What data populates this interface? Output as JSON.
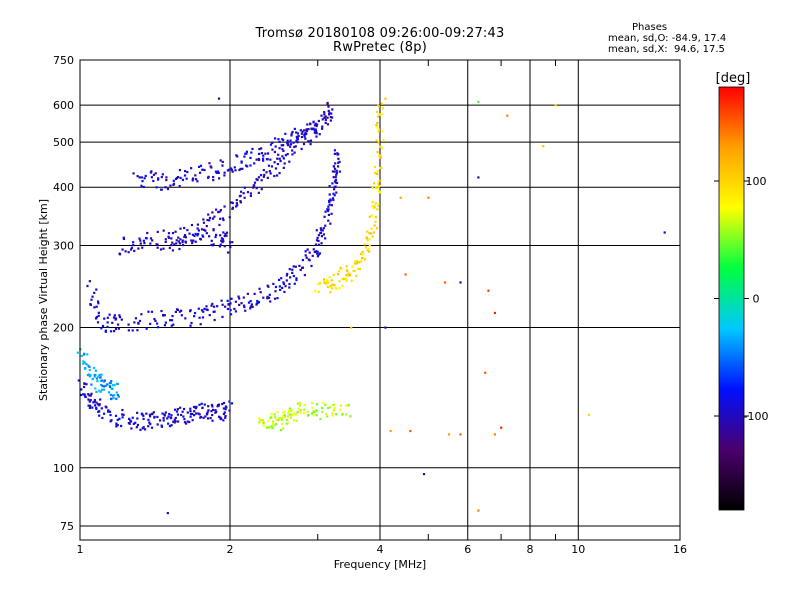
{
  "header": {
    "title_line1": "Tromsø 20180108 09:26:00-09:27:43",
    "title_line2": "RwPretec (8p)"
  },
  "stats": {
    "heading": "Phases",
    "o_line": "mean, sd,O: -84.9, 17.4",
    "x_line": "mean, sd,X:  94.6, 17.5"
  },
  "colorbar": {
    "unit_label": "[deg]",
    "range": [
      -180,
      180
    ],
    "ticks": [
      100,
      0,
      -100
    ],
    "colors": [
      "#000000",
      "#4b006e",
      "#0010ff",
      "#00c8ff",
      "#00ff40",
      "#ffff00",
      "#ffa000",
      "#ff0000"
    ]
  },
  "chart_data": {
    "type": "scatter",
    "xlabel": "Frequency [MHz]",
    "ylabel": "Stationary phase Virtual Height [km]",
    "x_scale": "log",
    "y_scale": "log",
    "xlim": [
      1,
      16
    ],
    "ylim": [
      70,
      750
    ],
    "x_ticks": [
      1,
      2,
      4,
      6,
      8,
      10,
      16
    ],
    "x_minor_ticks": [
      3,
      5,
      7,
      9
    ],
    "y_ticks": [
      75,
      100,
      200,
      300,
      400,
      500,
      600,
      750
    ],
    "grid": true,
    "point_color_encodes": "phase [deg]",
    "traces": [
      {
        "label_hint": "E-region low band",
        "phase": -95,
        "points": [
          [
            1.0,
            150
          ],
          [
            1.05,
            140
          ],
          [
            1.1,
            132
          ],
          [
            1.2,
            128
          ],
          [
            1.3,
            126
          ],
          [
            1.4,
            127
          ],
          [
            1.5,
            128
          ],
          [
            1.6,
            130
          ],
          [
            1.7,
            131
          ],
          [
            1.8,
            132
          ],
          [
            1.9,
            132
          ],
          [
            2.0,
            133
          ]
        ]
      },
      {
        "label_hint": "E-region scatter",
        "phase": -35,
        "points": [
          [
            1.0,
            175
          ],
          [
            1.05,
            160
          ],
          [
            1.1,
            152
          ],
          [
            1.15,
            148
          ],
          [
            1.2,
            146
          ]
        ]
      },
      {
        "label_hint": "Es patch",
        "phase": 65,
        "points": [
          [
            2.3,
            126
          ],
          [
            2.45,
            125
          ],
          [
            2.55,
            127
          ],
          [
            2.7,
            132
          ],
          [
            2.9,
            133
          ],
          [
            3.2,
            132
          ],
          [
            3.5,
            131
          ]
        ]
      },
      {
        "label_hint": "F-region O trace",
        "phase": -95,
        "points": [
          [
            1.05,
            245
          ],
          [
            1.1,
            205
          ],
          [
            1.2,
            205
          ],
          [
            1.4,
            208
          ],
          [
            1.6,
            210
          ],
          [
            1.8,
            214
          ],
          [
            2.0,
            222
          ],
          [
            2.2,
            228
          ],
          [
            2.4,
            238
          ],
          [
            2.6,
            250
          ],
          [
            2.8,
            272
          ],
          [
            3.0,
            300
          ],
          [
            3.1,
            330
          ],
          [
            3.2,
            380
          ],
          [
            3.25,
            430
          ],
          [
            3.3,
            470
          ]
        ]
      },
      {
        "label_hint": "F-region X trace",
        "phase": 95,
        "points": [
          [
            3.0,
            245
          ],
          [
            3.2,
            250
          ],
          [
            3.4,
            258
          ],
          [
            3.6,
            270
          ],
          [
            3.8,
            300
          ],
          [
            3.9,
            350
          ],
          [
            3.95,
            420
          ],
          [
            4.0,
            500
          ],
          [
            4.0,
            600
          ]
        ]
      },
      {
        "label_hint": "Oblique trace upper",
        "phase": -100,
        "points": [
          [
            1.5,
            300
          ],
          [
            1.7,
            320
          ],
          [
            1.9,
            345
          ],
          [
            2.1,
            375
          ],
          [
            2.3,
            410
          ],
          [
            2.5,
            450
          ],
          [
            2.7,
            490
          ],
          [
            2.9,
            520
          ],
          [
            3.1,
            560
          ],
          [
            3.2,
            600
          ]
        ]
      },
      {
        "label_hint": "Oblique trace high",
        "phase": -95,
        "points": [
          [
            1.3,
            420
          ],
          [
            1.45,
            410
          ],
          [
            1.6,
            420
          ],
          [
            1.8,
            430
          ],
          [
            2.0,
            445
          ],
          [
            2.2,
            460
          ],
          [
            2.4,
            480
          ],
          [
            2.6,
            500
          ],
          [
            2.8,
            520
          ],
          [
            3.0,
            540
          ]
        ]
      },
      {
        "label_hint": "Mid band",
        "phase": -100,
        "points": [
          [
            1.2,
            300
          ],
          [
            1.35,
            305
          ],
          [
            1.5,
            310
          ],
          [
            1.7,
            315
          ],
          [
            1.9,
            312
          ],
          [
            2.0,
            300
          ]
        ]
      }
    ],
    "sparse_points": [
      {
        "x": 1.9,
        "y": 620,
        "phase": -110
      },
      {
        "x": 4.1,
        "y": 620,
        "phase": 110
      },
      {
        "x": 4.4,
        "y": 380,
        "phase": 130
      },
      {
        "x": 4.5,
        "y": 260,
        "phase": 150
      },
      {
        "x": 5.0,
        "y": 380,
        "phase": 140
      },
      {
        "x": 5.4,
        "y": 250,
        "phase": 150
      },
      {
        "x": 5.8,
        "y": 250,
        "phase": -105
      },
      {
        "x": 6.3,
        "y": 610,
        "phase": 40
      },
      {
        "x": 6.3,
        "y": 420,
        "phase": -110
      },
      {
        "x": 6.6,
        "y": 240,
        "phase": 160
      },
      {
        "x": 6.8,
        "y": 215,
        "phase": 170
      },
      {
        "x": 7.2,
        "y": 570,
        "phase": 140
      },
      {
        "x": 8.5,
        "y": 490,
        "phase": 110
      },
      {
        "x": 9.0,
        "y": 600,
        "phase": 100
      },
      {
        "x": 4.2,
        "y": 120,
        "phase": 130
      },
      {
        "x": 4.6,
        "y": 120,
        "phase": 150
      },
      {
        "x": 5.5,
        "y": 118,
        "phase": 130
      },
      {
        "x": 5.8,
        "y": 118,
        "phase": 150
      },
      {
        "x": 6.8,
        "y": 118,
        "phase": 140
      },
      {
        "x": 7.0,
        "y": 122,
        "phase": 170
      },
      {
        "x": 4.9,
        "y": 97,
        "phase": -100
      },
      {
        "x": 6.3,
        "y": 81,
        "phase": 140
      },
      {
        "x": 1.5,
        "y": 80,
        "phase": -110
      },
      {
        "x": 14.9,
        "y": 320,
        "phase": -100
      },
      {
        "x": 10.5,
        "y": 130,
        "phase": 100
      },
      {
        "x": 6.5,
        "y": 160,
        "phase": 150
      },
      {
        "x": 3.5,
        "y": 200,
        "phase": 110
      },
      {
        "x": 4.1,
        "y": 200,
        "phase": -100
      }
    ]
  }
}
